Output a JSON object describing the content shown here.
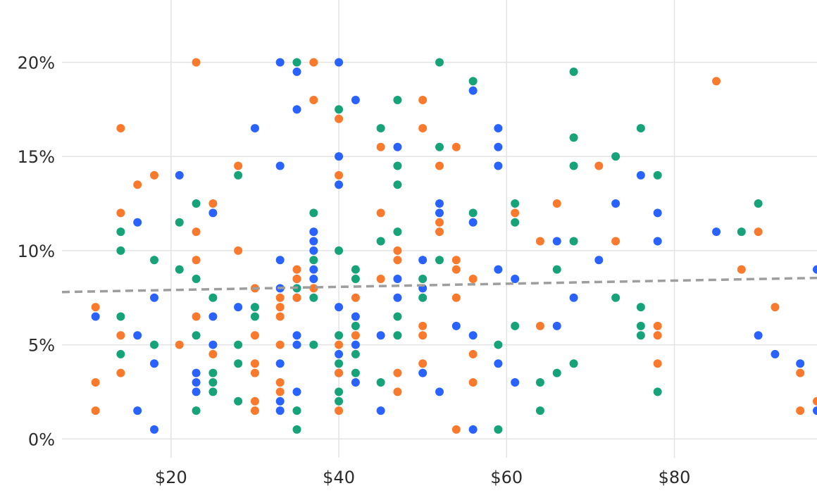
{
  "chart_data": {
    "type": "scatter",
    "title": "",
    "xlabel": "",
    "ylabel": "",
    "xlim": [
      7,
      97
    ],
    "ylim": [
      -1,
      22
    ],
    "x_ticks": [
      20,
      40,
      60,
      80
    ],
    "x_tick_labels": [
      "$20",
      "$40",
      "$60",
      "$80"
    ],
    "y_ticks": [
      0,
      5,
      10,
      15,
      20
    ],
    "y_tick_labels": [
      "0%",
      "5%",
      "10%",
      "15%",
      "20%"
    ],
    "grid": true,
    "legend": "none",
    "trendline": {
      "style": "dashed",
      "color": "#9e9e9e",
      "points": [
        [
          7,
          7.8
        ],
        [
          97,
          8.55
        ]
      ]
    },
    "series": [
      {
        "color": "#2962ff",
        "points": [
          [
            11,
            6.5
          ],
          [
            16,
            11.5
          ],
          [
            16,
            5.5
          ],
          [
            16,
            1.5
          ],
          [
            18,
            7.5
          ],
          [
            18,
            4
          ],
          [
            18,
            0.5
          ],
          [
            21,
            14
          ],
          [
            23,
            3.5
          ],
          [
            23,
            3
          ],
          [
            23,
            2.5
          ],
          [
            25,
            12
          ],
          [
            25,
            6.5
          ],
          [
            25,
            5
          ],
          [
            28,
            7
          ],
          [
            30,
            16.5
          ],
          [
            33,
            20
          ],
          [
            33,
            14.5
          ],
          [
            33,
            9.5
          ],
          [
            33,
            8
          ],
          [
            33,
            4
          ],
          [
            33,
            2
          ],
          [
            33,
            1.5
          ],
          [
            35,
            19.5
          ],
          [
            35,
            17.5
          ],
          [
            35,
            8.5
          ],
          [
            35,
            7.5
          ],
          [
            35,
            5.5
          ],
          [
            35,
            5
          ],
          [
            35,
            2.5
          ],
          [
            37,
            11
          ],
          [
            37,
            10.5
          ],
          [
            37,
            10
          ],
          [
            37,
            9
          ],
          [
            37,
            8.5
          ],
          [
            40,
            20
          ],
          [
            40,
            15
          ],
          [
            40,
            13.5
          ],
          [
            40,
            7
          ],
          [
            40,
            4.5
          ],
          [
            40,
            3.5
          ],
          [
            42,
            18
          ],
          [
            42,
            6.5
          ],
          [
            42,
            5
          ],
          [
            42,
            3
          ],
          [
            45,
            5.5
          ],
          [
            45,
            1.5
          ],
          [
            47,
            15.5
          ],
          [
            47,
            8.5
          ],
          [
            47,
            7.5
          ],
          [
            50,
            9.5
          ],
          [
            50,
            8
          ],
          [
            50,
            3.5
          ],
          [
            52,
            12.5
          ],
          [
            52,
            12
          ],
          [
            52,
            2.5
          ],
          [
            54,
            6
          ],
          [
            56,
            18.5
          ],
          [
            56,
            11.5
          ],
          [
            56,
            5.5
          ],
          [
            56,
            0.5
          ],
          [
            59,
            16.5
          ],
          [
            59,
            15.5
          ],
          [
            59,
            14.5
          ],
          [
            59,
            9
          ],
          [
            59,
            4
          ],
          [
            61,
            8.5
          ],
          [
            61,
            3
          ],
          [
            66,
            10.5
          ],
          [
            66,
            6
          ],
          [
            68,
            7.5
          ],
          [
            71,
            9.5
          ],
          [
            73,
            12.5
          ],
          [
            76,
            14
          ],
          [
            78,
            12
          ],
          [
            78,
            10.5
          ],
          [
            85,
            11
          ],
          [
            90,
            5.5
          ],
          [
            92,
            4.5
          ],
          [
            95,
            4
          ],
          [
            97,
            9
          ],
          [
            97,
            1.5
          ]
        ]
      },
      {
        "color": "#fa7a2d",
        "points": [
          [
            11,
            7
          ],
          [
            11,
            3
          ],
          [
            11,
            1.5
          ],
          [
            14,
            16.5
          ],
          [
            14,
            12
          ],
          [
            14,
            5.5
          ],
          [
            14,
            3.5
          ],
          [
            16,
            13.5
          ],
          [
            18,
            14
          ],
          [
            21,
            5
          ],
          [
            23,
            20
          ],
          [
            23,
            11
          ],
          [
            23,
            9.5
          ],
          [
            23,
            6.5
          ],
          [
            25,
            12.5
          ],
          [
            25,
            4.5
          ],
          [
            28,
            14.5
          ],
          [
            28,
            10
          ],
          [
            30,
            8
          ],
          [
            30,
            5.5
          ],
          [
            30,
            4
          ],
          [
            30,
            3.5
          ],
          [
            30,
            2
          ],
          [
            30,
            1.5
          ],
          [
            33,
            7.5
          ],
          [
            33,
            7
          ],
          [
            33,
            6.5
          ],
          [
            33,
            5
          ],
          [
            33,
            3
          ],
          [
            33,
            2.5
          ],
          [
            35,
            9
          ],
          [
            35,
            8.5
          ],
          [
            35,
            7.5
          ],
          [
            37,
            20
          ],
          [
            37,
            18
          ],
          [
            37,
            8
          ],
          [
            40,
            17
          ],
          [
            40,
            14
          ],
          [
            40,
            5
          ],
          [
            40,
            3.5
          ],
          [
            40,
            1.5
          ],
          [
            42,
            7.5
          ],
          [
            42,
            5.5
          ],
          [
            45,
            15.5
          ],
          [
            45,
            12
          ],
          [
            45,
            8.5
          ],
          [
            47,
            10
          ],
          [
            47,
            9.5
          ],
          [
            47,
            3.5
          ],
          [
            47,
            2.5
          ],
          [
            50,
            18
          ],
          [
            50,
            16.5
          ],
          [
            50,
            6
          ],
          [
            50,
            5.5
          ],
          [
            50,
            4
          ],
          [
            52,
            14.5
          ],
          [
            52,
            11.5
          ],
          [
            52,
            11
          ],
          [
            54,
            15.5
          ],
          [
            54,
            9.5
          ],
          [
            54,
            9
          ],
          [
            54,
            7.5
          ],
          [
            54,
            0.5
          ],
          [
            56,
            8.5
          ],
          [
            56,
            4.5
          ],
          [
            56,
            3
          ],
          [
            61,
            12
          ],
          [
            64,
            10.5
          ],
          [
            64,
            6
          ],
          [
            66,
            12.5
          ],
          [
            71,
            14.5
          ],
          [
            73,
            10.5
          ],
          [
            78,
            6
          ],
          [
            78,
            5.5
          ],
          [
            78,
            4
          ],
          [
            85,
            19
          ],
          [
            88,
            9
          ],
          [
            90,
            11
          ],
          [
            92,
            7
          ],
          [
            95,
            3.5
          ],
          [
            95,
            1.5
          ],
          [
            97,
            2
          ]
        ]
      },
      {
        "color": "#16a37a",
        "points": [
          [
            14,
            11
          ],
          [
            14,
            10
          ],
          [
            14,
            6.5
          ],
          [
            14,
            4.5
          ],
          [
            18,
            9.5
          ],
          [
            18,
            5
          ],
          [
            21,
            11.5
          ],
          [
            21,
            9
          ],
          [
            23,
            12.5
          ],
          [
            23,
            8.5
          ],
          [
            23,
            5.5
          ],
          [
            23,
            1.5
          ],
          [
            25,
            7.5
          ],
          [
            25,
            3.5
          ],
          [
            25,
            3
          ],
          [
            25,
            2.5
          ],
          [
            28,
            14
          ],
          [
            28,
            5
          ],
          [
            28,
            4
          ],
          [
            28,
            2
          ],
          [
            30,
            7
          ],
          [
            30,
            6.5
          ],
          [
            35,
            20
          ],
          [
            35,
            8
          ],
          [
            35,
            1.5
          ],
          [
            35,
            0.5
          ],
          [
            37,
            12
          ],
          [
            37,
            9.5
          ],
          [
            37,
            7.5
          ],
          [
            37,
            5
          ],
          [
            40,
            17.5
          ],
          [
            40,
            10
          ],
          [
            40,
            5.5
          ],
          [
            40,
            4
          ],
          [
            40,
            2.5
          ],
          [
            40,
            2
          ],
          [
            42,
            9
          ],
          [
            42,
            8.5
          ],
          [
            42,
            6
          ],
          [
            42,
            4.5
          ],
          [
            42,
            3.5
          ],
          [
            45,
            16.5
          ],
          [
            45,
            10.5
          ],
          [
            45,
            3
          ],
          [
            47,
            18
          ],
          [
            47,
            14.5
          ],
          [
            47,
            13.5
          ],
          [
            47,
            11
          ],
          [
            47,
            6.5
          ],
          [
            47,
            5.5
          ],
          [
            50,
            8.5
          ],
          [
            50,
            7.5
          ],
          [
            52,
            20
          ],
          [
            52,
            15.5
          ],
          [
            52,
            9.5
          ],
          [
            56,
            19
          ],
          [
            56,
            12
          ],
          [
            59,
            5
          ],
          [
            59,
            0.5
          ],
          [
            61,
            12.5
          ],
          [
            61,
            11.5
          ],
          [
            61,
            6
          ],
          [
            64,
            3
          ],
          [
            64,
            1.5
          ],
          [
            66,
            9
          ],
          [
            66,
            3.5
          ],
          [
            68,
            19.5
          ],
          [
            68,
            16
          ],
          [
            68,
            14.5
          ],
          [
            68,
            10.5
          ],
          [
            68,
            4
          ],
          [
            73,
            15
          ],
          [
            73,
            7.5
          ],
          [
            76,
            16.5
          ],
          [
            76,
            7
          ],
          [
            76,
            6
          ],
          [
            76,
            5.5
          ],
          [
            78,
            14
          ],
          [
            78,
            2.5
          ],
          [
            88,
            11
          ],
          [
            90,
            12.5
          ]
        ]
      }
    ]
  }
}
